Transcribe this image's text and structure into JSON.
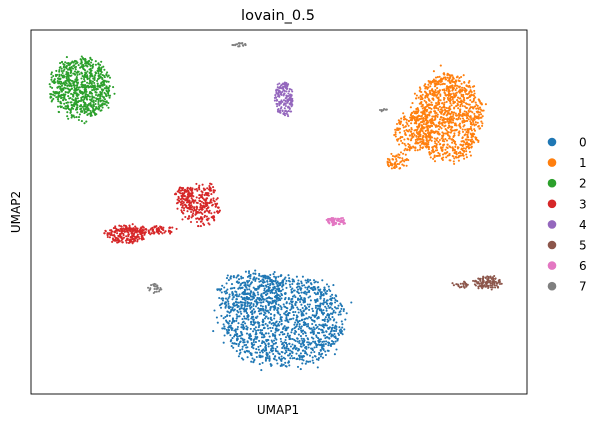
{
  "chart_data": {
    "type": "scatter",
    "title": "lovain_0.5",
    "xlabel": "UMAP1",
    "ylabel": "UMAP2",
    "xticks": false,
    "yticks": false,
    "grid": false,
    "legend_position": "right",
    "legend": [
      {
        "label": "0",
        "color": "#1f77b4"
      },
      {
        "label": "1",
        "color": "#ff7f0e"
      },
      {
        "label": "2",
        "color": "#2ca02c"
      },
      {
        "label": "3",
        "color": "#d62728"
      },
      {
        "label": "4",
        "color": "#9467bd"
      },
      {
        "label": "5",
        "color": "#8c564b"
      },
      {
        "label": "6",
        "color": "#e377c2"
      },
      {
        "label": "7",
        "color": "#7f7f7f"
      }
    ],
    "clusters": [
      {
        "label": "0",
        "color": "#1f77b4",
        "regions": [
          {
            "cx": 0.51,
            "cy": 0.2,
            "rx": 0.135,
            "ry": 0.135,
            "n": 1400
          },
          {
            "cx": 0.44,
            "cy": 0.28,
            "rx": 0.07,
            "ry": 0.06,
            "n": 250
          }
        ]
      },
      {
        "label": "1",
        "color": "#ff7f0e",
        "regions": [
          {
            "cx": 0.84,
            "cy": 0.76,
            "rx": 0.075,
            "ry": 0.13,
            "n": 1100
          },
          {
            "cx": 0.77,
            "cy": 0.72,
            "rx": 0.04,
            "ry": 0.06,
            "n": 180
          },
          {
            "cx": 0.74,
            "cy": 0.64,
            "rx": 0.025,
            "ry": 0.025,
            "n": 60
          }
        ]
      },
      {
        "label": "2",
        "color": "#2ca02c",
        "regions": [
          {
            "cx": 0.1,
            "cy": 0.84,
            "rx": 0.065,
            "ry": 0.09,
            "n": 800
          }
        ]
      },
      {
        "label": "3",
        "color": "#d62728",
        "regions": [
          {
            "cx": 0.34,
            "cy": 0.52,
            "rx": 0.045,
            "ry": 0.065,
            "n": 280
          },
          {
            "cx": 0.31,
            "cy": 0.55,
            "rx": 0.02,
            "ry": 0.02,
            "n": 60
          },
          {
            "cx": 0.25,
            "cy": 0.45,
            "rx": 0.05,
            "ry": 0.012,
            "n": 80
          },
          {
            "cx": 0.19,
            "cy": 0.44,
            "rx": 0.045,
            "ry": 0.028,
            "n": 220
          }
        ]
      },
      {
        "label": "4",
        "color": "#9467bd",
        "regions": [
          {
            "cx": 0.51,
            "cy": 0.81,
            "rx": 0.02,
            "ry": 0.052,
            "n": 170
          }
        ]
      },
      {
        "label": "5",
        "color": "#8c564b",
        "regions": [
          {
            "cx": 0.92,
            "cy": 0.305,
            "rx": 0.03,
            "ry": 0.02,
            "n": 110
          },
          {
            "cx": 0.865,
            "cy": 0.3,
            "rx": 0.018,
            "ry": 0.01,
            "n": 25
          }
        ]
      },
      {
        "label": "6",
        "color": "#e377c2",
        "regions": [
          {
            "cx": 0.615,
            "cy": 0.475,
            "rx": 0.02,
            "ry": 0.013,
            "n": 70
          }
        ]
      },
      {
        "label": "7",
        "color": "#7f7f7f",
        "regions": [
          {
            "cx": 0.42,
            "cy": 0.96,
            "rx": 0.015,
            "ry": 0.005,
            "n": 20
          },
          {
            "cx": 0.25,
            "cy": 0.29,
            "rx": 0.015,
            "ry": 0.015,
            "n": 25
          },
          {
            "cx": 0.71,
            "cy": 0.78,
            "rx": 0.01,
            "ry": 0.004,
            "n": 8
          }
        ]
      }
    ]
  }
}
